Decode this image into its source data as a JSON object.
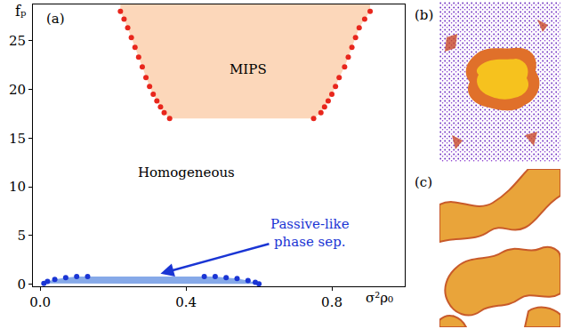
{
  "chart_data": {
    "type": "scatter",
    "panel_label": "(a)",
    "x_label": "σ²ρ₀",
    "y_label": "fₚ",
    "xlim": [
      -0.02,
      1.0
    ],
    "ylim": [
      -0.2,
      28.7
    ],
    "xticks": [
      {
        "value": 0,
        "label": "0.0"
      },
      {
        "value": 0.4,
        "label": "0.4"
      },
      {
        "value": 0.8,
        "label": "0.8"
      }
    ],
    "yticks": [
      0,
      5,
      10,
      15,
      20,
      25
    ],
    "grid": false,
    "series": [
      {
        "type": "region",
        "color": "#e8261c",
        "marker": "circle",
        "x": [
          0.22,
          0.23,
          0.24,
          0.25,
          0.26,
          0.27,
          0.28,
          0.29,
          0.3,
          0.31,
          0.32,
          0.33,
          0.34,
          0.355,
          0.75,
          0.77,
          0.78,
          0.79,
          0.8,
          0.81,
          0.82,
          0.835,
          0.845,
          0.855,
          0.865,
          0.875,
          0.89,
          0.905
        ],
        "values": [
          28,
          27.2,
          26.3,
          25.3,
          24.3,
          23.3,
          22.3,
          21.2,
          20.3,
          19.5,
          18.8,
          18.2,
          17.6,
          17.0,
          17.0,
          17.6,
          18.2,
          18.8,
          19.5,
          20.3,
          21.2,
          22.3,
          23.3,
          24.3,
          25.3,
          26.3,
          27.2,
          28
        ]
      },
      {
        "type": "region",
        "color": "#1a35d4",
        "marker": "circle",
        "x": [
          0.01,
          0.02,
          0.04,
          0.07,
          0.1,
          0.13,
          0.45,
          0.48,
          0.51,
          0.54,
          0.57,
          0.59,
          0.6
        ],
        "values": [
          0.1,
          0.3,
          0.5,
          0.7,
          0.8,
          0.8,
          0.8,
          0.8,
          0.7,
          0.6,
          0.4,
          0.2,
          0.05
        ]
      }
    ],
    "annotations": [
      {
        "text": "MIPS",
        "x": 0.57,
        "y": 22
      },
      {
        "text": "Homogeneous",
        "x": 0.4,
        "y": 11.5
      },
      {
        "text": "Passive-like phase sep.",
        "x": 0.74,
        "y": 5.3,
        "color": "#1a35d4",
        "arrow_x": 0.33,
        "arrow_y": 1.1
      }
    ]
  },
  "images": [
    {
      "label": "(b)"
    },
    {
      "label": "(c)"
    }
  ]
}
